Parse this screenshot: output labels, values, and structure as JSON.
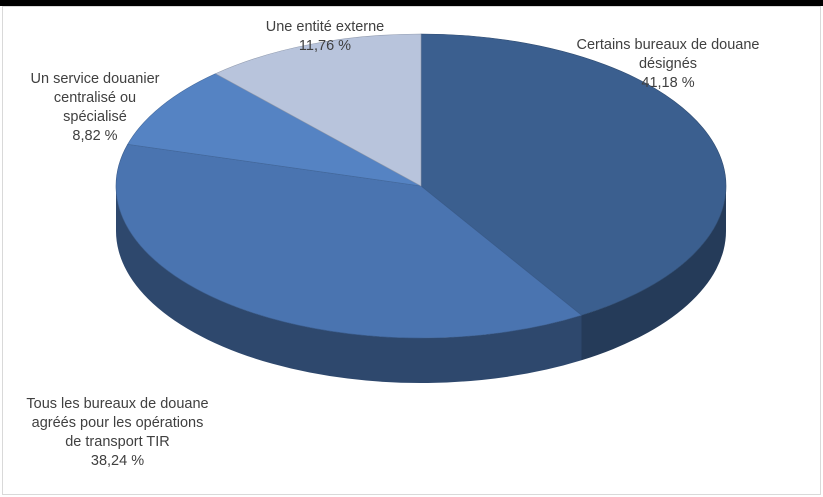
{
  "chart_data": {
    "type": "pie",
    "style": "3d",
    "slices": [
      {
        "label_lines": [
          "Certains bureaux de douane",
          "désignés"
        ],
        "value_label": "41,18 %",
        "value": 41.18,
        "color": "#3b5f8f"
      },
      {
        "label_lines": [
          "Tous les bureaux de douane",
          "agréés pour les opérations",
          "de transport TIR"
        ],
        "value_label": "38,24 %",
        "value": 38.24,
        "color": "#4a74b0"
      },
      {
        "label_lines": [
          "Un service douanier",
          "centralisé ou",
          "spécialisé"
        ],
        "value_label": "8,82 %",
        "value": 8.82,
        "color": "#5583c3"
      },
      {
        "label_lines": [
          "Une entité externe"
        ],
        "value_label": "11,76 %",
        "value": 11.76,
        "color": "#b8c4dc"
      }
    ]
  }
}
